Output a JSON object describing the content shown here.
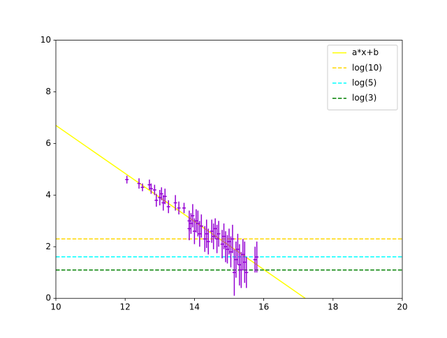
{
  "chart_data": {
    "type": "errorbar",
    "xlim": [
      10,
      20
    ],
    "ylim": [
      0,
      10
    ],
    "xticks": [
      10,
      12,
      14,
      16,
      18,
      20
    ],
    "yticks": [
      0,
      2,
      4,
      6,
      8,
      10
    ],
    "legend": "upper right",
    "series": [
      {
        "name": "a*x+b",
        "color": "#ffff00",
        "style": "solid",
        "x": [
          10,
          17.2
        ],
        "values": [
          6.7,
          0
        ]
      },
      {
        "name": "log(10)",
        "color": "#ffd700",
        "style": "dashed",
        "x": [
          10,
          20
        ],
        "values": [
          2.303,
          2.303
        ]
      },
      {
        "name": "log(5)",
        "color": "#00ffff",
        "style": "dashed",
        "x": [
          10,
          20
        ],
        "values": [
          1.609,
          1.609
        ]
      },
      {
        "name": "log(3)",
        "color": "#008000",
        "style": "dashed",
        "x": [
          10,
          20
        ],
        "values": [
          1.099,
          1.099
        ]
      }
    ],
    "points": {
      "color": "#9400d3",
      "x": [
        12.05,
        12.4,
        12.5,
        12.7,
        12.75,
        12.85,
        12.9,
        13.0,
        13.05,
        13.1,
        13.15,
        13.25,
        13.45,
        13.55,
        13.7,
        13.85,
        13.85,
        13.9,
        13.95,
        14.0,
        14.05,
        14.1,
        14.15,
        14.2,
        14.3,
        14.35,
        14.4,
        14.5,
        14.55,
        14.6,
        14.65,
        14.7,
        14.8,
        14.85,
        14.9,
        14.95,
        15.0,
        15.05,
        15.1,
        15.15,
        15.2,
        15.25,
        15.3,
        15.35,
        15.4,
        15.45,
        15.5,
        15.75,
        15.8
      ],
      "values": [
        4.6,
        4.45,
        4.3,
        4.4,
        4.25,
        4.2,
        3.8,
        3.9,
        4.05,
        3.7,
        3.95,
        3.55,
        3.7,
        3.5,
        3.5,
        3.0,
        2.7,
        2.9,
        3.2,
        2.6,
        3.0,
        2.9,
        2.5,
        2.8,
        2.3,
        2.5,
        2.2,
        2.6,
        2.4,
        2.7,
        2.3,
        2.5,
        2.1,
        2.4,
        2.0,
        1.9,
        2.2,
        1.8,
        2.3,
        1.0,
        1.5,
        1.9,
        1.3,
        1.1,
        1.7,
        1.4,
        1.0,
        1.5,
        1.6
      ],
      "yerr": [
        0.15,
        0.2,
        0.15,
        0.2,
        0.2,
        0.2,
        0.25,
        0.3,
        0.25,
        0.3,
        0.3,
        0.25,
        0.3,
        0.25,
        0.2,
        0.4,
        0.45,
        0.4,
        0.45,
        0.5,
        0.45,
        0.5,
        0.5,
        0.45,
        0.5,
        0.55,
        0.5,
        0.45,
        0.5,
        0.4,
        0.55,
        0.5,
        0.55,
        0.5,
        0.6,
        0.55,
        0.5,
        0.6,
        0.55,
        0.9,
        0.7,
        0.6,
        0.8,
        0.7,
        0.6,
        0.8,
        0.6,
        0.5,
        0.6
      ],
      "xerr": [
        0.05,
        0.05,
        0.05,
        0.05,
        0.05,
        0.05,
        0.05,
        0.05,
        0.05,
        0.05,
        0.05,
        0.05,
        0.05,
        0.05,
        0.05,
        0.05,
        0.05,
        0.05,
        0.05,
        0.05,
        0.05,
        0.05,
        0.05,
        0.05,
        0.05,
        0.05,
        0.05,
        0.05,
        0.05,
        0.05,
        0.05,
        0.05,
        0.05,
        0.05,
        0.05,
        0.05,
        0.05,
        0.05,
        0.05,
        0.05,
        0.05,
        0.05,
        0.05,
        0.05,
        0.05,
        0.05,
        0.05,
        0.05,
        0.05
      ]
    }
  }
}
